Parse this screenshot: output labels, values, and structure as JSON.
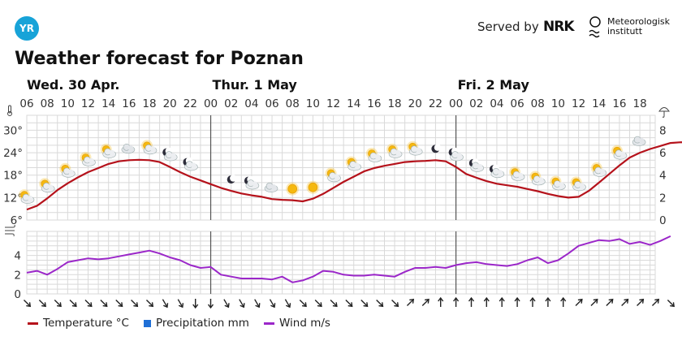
{
  "header": {
    "logo_text": "YR",
    "served_by": "Served by",
    "nrk": "NRK",
    "met_line1": "Meteorologisk",
    "met_line2": "institutt"
  },
  "title": "Weather forecast for Poznan",
  "colors": {
    "temperature": "#b5121b",
    "precipitation": "#1f6fd6",
    "wind": "#9b27c9",
    "grid": "#d9d9d9",
    "day_divider": "#555555"
  },
  "legend": {
    "temperature": "Temperature °C",
    "precipitation": "Precipitation mm",
    "wind": "Wind m/s"
  },
  "chart_data": {
    "type": "line",
    "days": [
      {
        "label": "Wed. 30 Apr.",
        "start_hour": 6
      },
      {
        "label": "Thur. 1 May",
        "start_hour": 24
      },
      {
        "label": "Fri. 2 May",
        "start_hour": 48
      }
    ],
    "hour_ticks": [
      "06",
      "08",
      "10",
      "12",
      "14",
      "16",
      "18",
      "20",
      "22",
      "00",
      "02",
      "04",
      "06",
      "08",
      "10",
      "12",
      "14",
      "16",
      "18",
      "20",
      "22",
      "00",
      "02",
      "04",
      "06",
      "08",
      "10",
      "12",
      "14",
      "16",
      "18"
    ],
    "x_range_hours": [
      6,
      67.5
    ],
    "temp_axis": {
      "ticks": [
        "6°",
        "12°",
        "18°",
        "24°",
        "30°"
      ],
      "values": [
        6,
        12,
        18,
        24,
        30
      ],
      "ylim": [
        6,
        34
      ]
    },
    "precip_axis": {
      "ticks": [
        "0",
        "2",
        "4",
        "6",
        "8"
      ],
      "values": [
        0,
        2,
        4,
        6,
        8
      ],
      "ylim": [
        0,
        9.33
      ]
    },
    "wind_axis": {
      "ticks": [
        "0",
        "2",
        "4"
      ],
      "values": [
        0,
        2,
        4
      ],
      "ylim": [
        0,
        6.5
      ]
    },
    "temperature": [
      [
        6,
        8.8
      ],
      [
        7,
        9.8
      ],
      [
        8,
        11.8
      ],
      [
        9,
        14
      ],
      [
        10,
        15.8
      ],
      [
        11,
        17.4
      ],
      [
        12,
        18.8
      ],
      [
        13,
        19.9
      ],
      [
        14,
        21
      ],
      [
        15,
        21.7
      ],
      [
        16,
        22
      ],
      [
        17,
        22.1
      ],
      [
        18,
        22
      ],
      [
        19,
        21.5
      ],
      [
        20,
        20.2
      ],
      [
        21,
        18.8
      ],
      [
        22,
        17.6
      ],
      [
        23,
        16.6
      ],
      [
        24,
        15.6
      ],
      [
        25,
        14.6
      ],
      [
        26,
        13.8
      ],
      [
        27,
        13.1
      ],
      [
        28,
        12.6
      ],
      [
        29,
        12.2
      ],
      [
        30,
        11.6
      ],
      [
        31,
        11.4
      ],
      [
        32,
        11.3
      ],
      [
        33,
        11
      ],
      [
        34,
        11.7
      ],
      [
        35,
        13
      ],
      [
        36,
        14.6
      ],
      [
        37,
        16.2
      ],
      [
        38,
        17.6
      ],
      [
        39,
        19
      ],
      [
        40,
        19.9
      ],
      [
        41,
        20.5
      ],
      [
        42,
        21
      ],
      [
        43,
        21.5
      ],
      [
        44,
        21.7
      ],
      [
        45,
        21.8
      ],
      [
        46,
        22
      ],
      [
        47,
        21.7
      ],
      [
        48,
        20.2
      ],
      [
        49,
        18.3
      ],
      [
        50,
        17.3
      ],
      [
        51,
        16.4
      ],
      [
        52,
        15.7
      ],
      [
        53,
        15.3
      ],
      [
        54,
        14.9
      ],
      [
        55,
        14.3
      ],
      [
        56,
        13.7
      ],
      [
        57,
        13
      ],
      [
        58,
        12.4
      ],
      [
        59,
        12
      ],
      [
        60,
        12.2
      ],
      [
        61,
        13.8
      ],
      [
        62,
        16
      ],
      [
        63,
        18.3
      ],
      [
        64,
        20.6
      ],
      [
        65,
        22.7
      ],
      [
        66,
        24
      ],
      [
        67,
        25
      ],
      [
        68,
        25.8
      ],
      [
        69,
        26.6
      ],
      [
        70,
        26.8
      ],
      [
        71,
        26.7
      ],
      [
        72,
        26
      ],
      [
        73,
        24.2
      ]
    ],
    "wind": [
      [
        6,
        2.2
      ],
      [
        7,
        2.4
      ],
      [
        8,
        2
      ],
      [
        9,
        2.6
      ],
      [
        10,
        3.3
      ],
      [
        11,
        3.5
      ],
      [
        12,
        3.7
      ],
      [
        13,
        3.6
      ],
      [
        14,
        3.7
      ],
      [
        15,
        3.9
      ],
      [
        16,
        4.1
      ],
      [
        17,
        4.3
      ],
      [
        18,
        4.5
      ],
      [
        19,
        4.2
      ],
      [
        20,
        3.8
      ],
      [
        21,
        3.5
      ],
      [
        22,
        3
      ],
      [
        23,
        2.7
      ],
      [
        24,
        2.8
      ],
      [
        25,
        2
      ],
      [
        26,
        1.8
      ],
      [
        27,
        1.6
      ],
      [
        28,
        1.6
      ],
      [
        29,
        1.6
      ],
      [
        30,
        1.5
      ],
      [
        31,
        1.8
      ],
      [
        32,
        1.2
      ],
      [
        33,
        1.4
      ],
      [
        34,
        1.8
      ],
      [
        35,
        2.4
      ],
      [
        36,
        2.3
      ],
      [
        37,
        2
      ],
      [
        38,
        1.9
      ],
      [
        39,
        1.9
      ],
      [
        40,
        2
      ],
      [
        41,
        1.9
      ],
      [
        42,
        1.8
      ],
      [
        43,
        2.3
      ],
      [
        44,
        2.7
      ],
      [
        45,
        2.7
      ],
      [
        46,
        2.8
      ],
      [
        47,
        2.7
      ],
      [
        48,
        3
      ],
      [
        49,
        3.2
      ],
      [
        50,
        3.3
      ],
      [
        51,
        3.1
      ],
      [
        52,
        3
      ],
      [
        53,
        2.9
      ],
      [
        54,
        3.1
      ],
      [
        55,
        3.5
      ],
      [
        56,
        3.8
      ],
      [
        57,
        3.2
      ],
      [
        58,
        3.5
      ],
      [
        59,
        4.2
      ],
      [
        60,
        5
      ],
      [
        61,
        5.3
      ],
      [
        62,
        5.6
      ],
      [
        63,
        5.5
      ],
      [
        64,
        5.7
      ],
      [
        65,
        5.2
      ],
      [
        66,
        5.4
      ],
      [
        67,
        5.1
      ],
      [
        68,
        5.5
      ],
      [
        69,
        6
      ]
    ],
    "precipitation": [],
    "wind_directions_deg": [
      135,
      135,
      135,
      135,
      135,
      135,
      135,
      135,
      135,
      150,
      150,
      180,
      180,
      150,
      150,
      150,
      150,
      150,
      135,
      135,
      135,
      135,
      135,
      135,
      135,
      45,
      45,
      0,
      0,
      0,
      0,
      0,
      0,
      0,
      0,
      0,
      45,
      45,
      45,
      45,
      45,
      45,
      135
    ],
    "weather_symbols": [
      {
        "h": 6,
        "icon": "partly-cloudy-day"
      },
      {
        "h": 8,
        "icon": "partly-cloudy-day"
      },
      {
        "h": 10,
        "icon": "partly-cloudy-day"
      },
      {
        "h": 12,
        "icon": "partly-cloudy-day"
      },
      {
        "h": 14,
        "icon": "partly-cloudy-day"
      },
      {
        "h": 16,
        "icon": "cloudy"
      },
      {
        "h": 18,
        "icon": "partly-cloudy-day"
      },
      {
        "h": 20,
        "icon": "partly-cloudy-night"
      },
      {
        "h": 22,
        "icon": "partly-cloudy-night"
      },
      {
        "h": 26,
        "icon": "clear-night"
      },
      {
        "h": 28,
        "icon": "partly-cloudy-night"
      },
      {
        "h": 30,
        "icon": "cloudy"
      },
      {
        "h": 32,
        "icon": "clear-day"
      },
      {
        "h": 34,
        "icon": "clear-day"
      },
      {
        "h": 36,
        "icon": "partly-cloudy-day"
      },
      {
        "h": 38,
        "icon": "partly-cloudy-day"
      },
      {
        "h": 40,
        "icon": "partly-cloudy-day"
      },
      {
        "h": 42,
        "icon": "partly-cloudy-day"
      },
      {
        "h": 44,
        "icon": "partly-cloudy-day"
      },
      {
        "h": 46,
        "icon": "clear-night"
      },
      {
        "h": 48,
        "icon": "partly-cloudy-night"
      },
      {
        "h": 50,
        "icon": "partly-cloudy-night"
      },
      {
        "h": 52,
        "icon": "partly-cloudy-night"
      },
      {
        "h": 54,
        "icon": "partly-cloudy-day"
      },
      {
        "h": 56,
        "icon": "partly-cloudy-day"
      },
      {
        "h": 58,
        "icon": "partly-cloudy-day"
      },
      {
        "h": 60,
        "icon": "partly-cloudy-day"
      },
      {
        "h": 62,
        "icon": "partly-cloudy-day"
      },
      {
        "h": 64,
        "icon": "partly-cloudy-day"
      },
      {
        "h": 66,
        "icon": "cloudy"
      }
    ],
    "grid": true,
    "legend_position": "bottom-left"
  }
}
